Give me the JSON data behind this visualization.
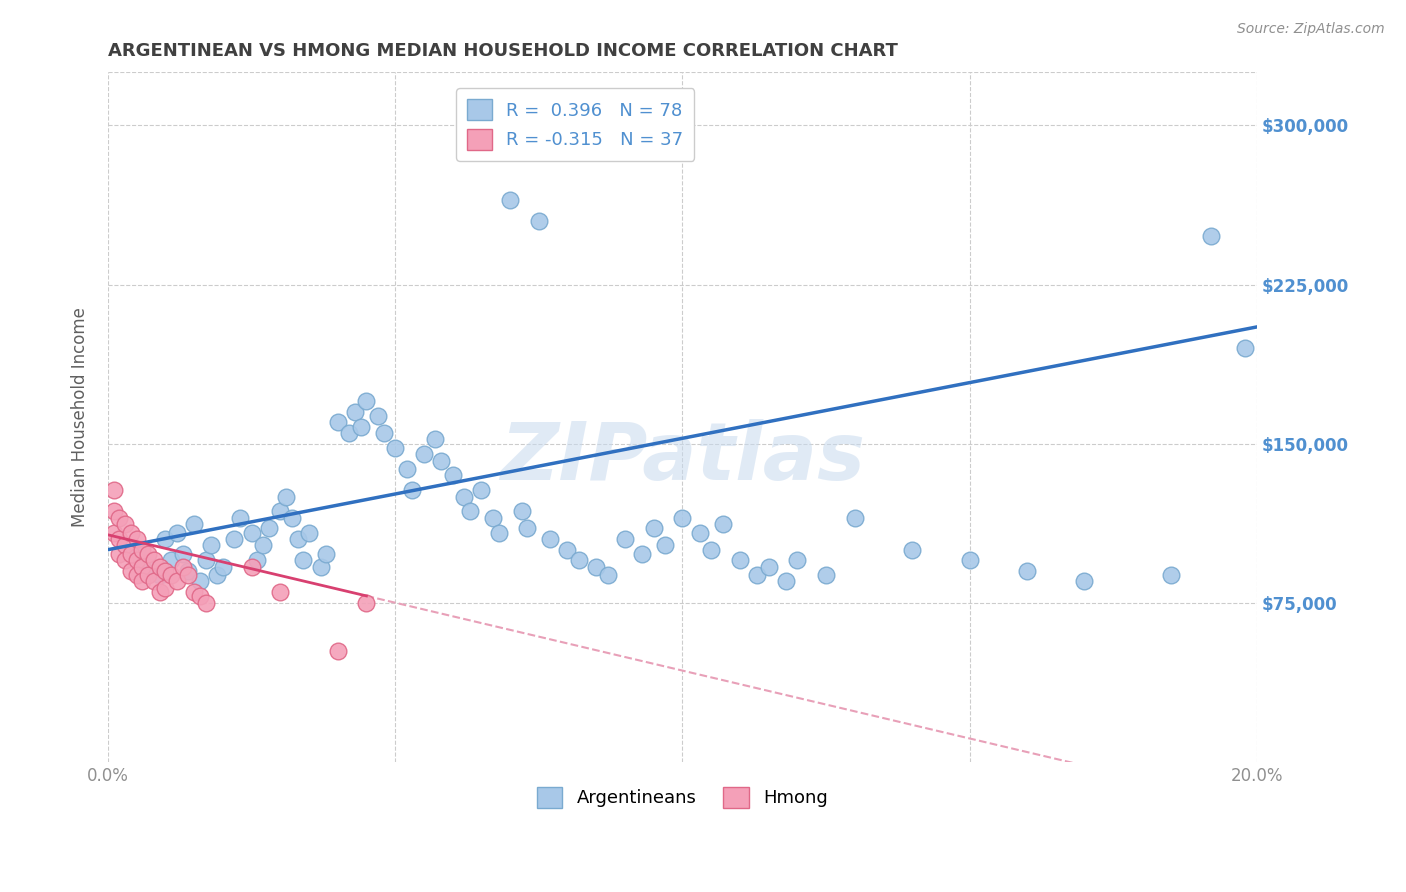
{
  "title": "ARGENTINEAN VS HMONG MEDIAN HOUSEHOLD INCOME CORRELATION CHART",
  "source": "Source: ZipAtlas.com",
  "ylabel": "Median Household Income",
  "watermark": "ZIPatlas",
  "xlim": [
    0.0,
    0.2
  ],
  "ylim": [
    0,
    325000
  ],
  "ytick_vals": [
    0,
    75000,
    150000,
    225000,
    300000
  ],
  "ytick_labels_right": [
    "",
    "$75,000",
    "$150,000",
    "$225,000",
    "$300,000"
  ],
  "xtick_vals": [
    0.0,
    0.05,
    0.1,
    0.15,
    0.2
  ],
  "xtick_labels": [
    "0.0%",
    "",
    "",
    "",
    "20.0%"
  ],
  "argentinean_color": "#a8c8e8",
  "argentinean_edge": "#7aaad0",
  "hmong_color": "#f4a0b8",
  "hmong_edge": "#e06888",
  "trend_blue": "#3070c0",
  "trend_pink": "#d84070",
  "trend_pink_dash": "#e8a0b8",
  "bg_color": "#ffffff",
  "grid_color": "#cccccc",
  "title_color": "#404040",
  "axis_label_color": "#606060",
  "tick_color": "#909090",
  "right_tick_color": "#5090d0",
  "marker_size": 12,
  "legend_label1": "R =  0.396   N = 78",
  "legend_label2": "R = -0.315   N = 37",
  "legend_label_arg": "Argentineans",
  "legend_label_hmong": "Hmong",
  "arg_x": [
    0.005,
    0.007,
    0.009,
    0.01,
    0.011,
    0.012,
    0.013,
    0.014,
    0.015,
    0.016,
    0.017,
    0.018,
    0.019,
    0.02,
    0.022,
    0.023,
    0.025,
    0.026,
    0.027,
    0.028,
    0.03,
    0.031,
    0.032,
    0.033,
    0.034,
    0.035,
    0.037,
    0.038,
    0.04,
    0.042,
    0.043,
    0.044,
    0.045,
    0.047,
    0.048,
    0.05,
    0.052,
    0.053,
    0.055,
    0.057,
    0.058,
    0.06,
    0.062,
    0.063,
    0.065,
    0.067,
    0.068,
    0.07,
    0.072,
    0.073,
    0.075,
    0.077,
    0.08,
    0.082,
    0.085,
    0.087,
    0.09,
    0.093,
    0.095,
    0.097,
    0.1,
    0.103,
    0.105,
    0.107,
    0.11,
    0.113,
    0.115,
    0.118,
    0.12,
    0.125,
    0.13,
    0.14,
    0.15,
    0.16,
    0.17,
    0.185,
    0.192,
    0.198
  ],
  "arg_y": [
    100000,
    92000,
    88000,
    105000,
    95000,
    108000,
    98000,
    90000,
    112000,
    85000,
    95000,
    102000,
    88000,
    92000,
    105000,
    115000,
    108000,
    95000,
    102000,
    110000,
    118000,
    125000,
    115000,
    105000,
    95000,
    108000,
    92000,
    98000,
    160000,
    155000,
    165000,
    158000,
    170000,
    163000,
    155000,
    148000,
    138000,
    128000,
    145000,
    152000,
    142000,
    135000,
    125000,
    118000,
    128000,
    115000,
    108000,
    265000,
    118000,
    110000,
    255000,
    105000,
    100000,
    95000,
    92000,
    88000,
    105000,
    98000,
    110000,
    102000,
    115000,
    108000,
    100000,
    112000,
    95000,
    88000,
    92000,
    85000,
    95000,
    88000,
    115000,
    100000,
    95000,
    90000,
    85000,
    88000,
    248000,
    195000
  ],
  "hmong_x": [
    0.001,
    0.001,
    0.001,
    0.002,
    0.002,
    0.002,
    0.003,
    0.003,
    0.003,
    0.004,
    0.004,
    0.004,
    0.005,
    0.005,
    0.005,
    0.006,
    0.006,
    0.006,
    0.007,
    0.007,
    0.008,
    0.008,
    0.009,
    0.009,
    0.01,
    0.01,
    0.011,
    0.012,
    0.013,
    0.014,
    0.015,
    0.016,
    0.017,
    0.025,
    0.03,
    0.04,
    0.045
  ],
  "hmong_y": [
    128000,
    118000,
    108000,
    115000,
    105000,
    98000,
    112000,
    102000,
    95000,
    108000,
    98000,
    90000,
    105000,
    95000,
    88000,
    100000,
    92000,
    85000,
    98000,
    88000,
    95000,
    85000,
    92000,
    80000,
    90000,
    82000,
    88000,
    85000,
    92000,
    88000,
    80000,
    78000,
    75000,
    92000,
    80000,
    52000,
    75000
  ]
}
